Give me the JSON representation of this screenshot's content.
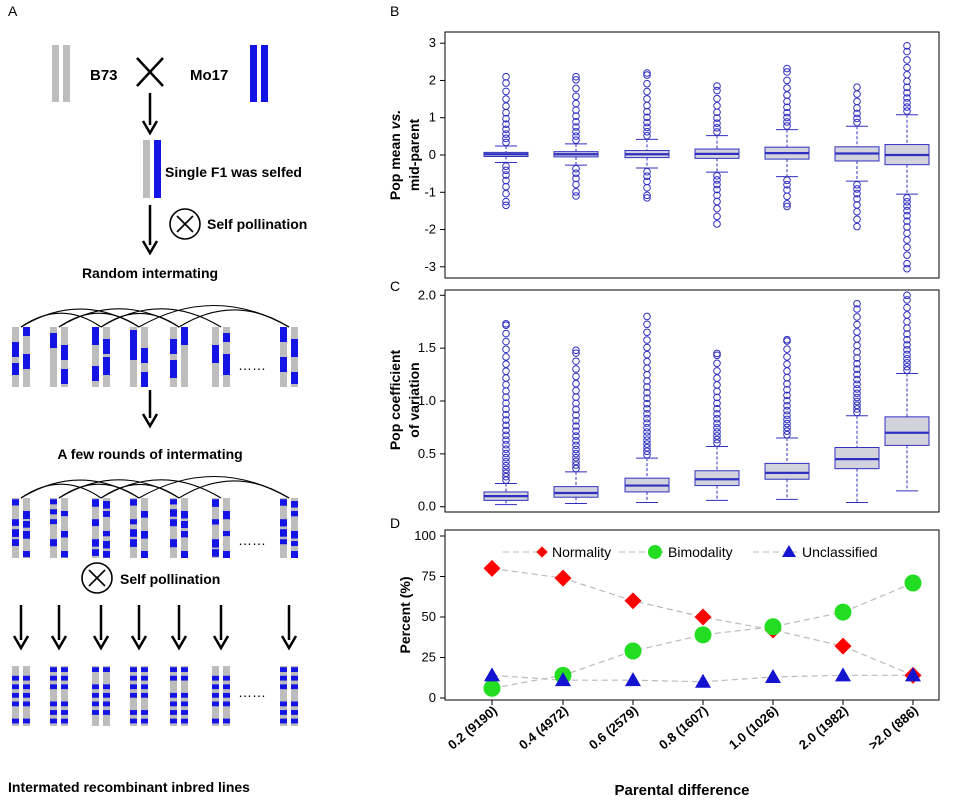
{
  "colors": {
    "grey": "#bdbdbd",
    "blue": "#1414e6",
    "box_fill": "#d3d3dd",
    "box_edge": "#3030c0",
    "normal": "#ff0000",
    "bimodal": "#22dd22",
    "unclass": "#1414d0",
    "line": "#bbbbbb"
  },
  "panel_a": {
    "label": "A",
    "parent1": "B73",
    "parent2": "Mo17",
    "f1_text": "Single F1 was selfed",
    "self1": "Self pollination",
    "random": "Random intermating",
    "few": "A few rounds of intermating",
    "self2": "Self pollination",
    "dots": "……",
    "final": "Intermated recombinant inbred lines"
  },
  "panel_b": {
    "label": "B",
    "ylabel_line1_a": "Pop mean ",
    "ylabel_line1_b": "vs.",
    "ylabel_line2": "mid-parent",
    "yticks": [
      "-3",
      "-2",
      "-1",
      "0",
      "1",
      "2",
      "3"
    ]
  },
  "panel_c": {
    "label": "C",
    "ylabel_line1": "Pop coefficient",
    "ylabel_line2": "of  variation",
    "yticks": [
      "0.0",
      "0.5",
      "1.0",
      "1.5",
      "2.0"
    ]
  },
  "panel_d": {
    "label": "D",
    "ylabel": "Percent (%)",
    "yticks": [
      "0",
      "25",
      "50",
      "75",
      "100"
    ],
    "xlabel": "Parental difference",
    "legend": [
      "Normality",
      "Bimodality",
      "Unclassified"
    ]
  },
  "chart_data": [
    {
      "type": "box",
      "title": "",
      "ylabel": "Pop mean vs. mid-parent",
      "ylim": [
        -3.3,
        3.3
      ],
      "categories": [
        "0.2 (9190)",
        "0.4 (4972)",
        "0.6 (2579)",
        "0.8 (1607)",
        "1.0 (1026)",
        "2.0 (1982)",
        ">2.0 (886)"
      ],
      "boxes": [
        {
          "q1": -0.04,
          "median": 0.02,
          "q3": 0.07,
          "wlo": -0.2,
          "whi": 0.24,
          "min": -1.35,
          "max": 2.1
        },
        {
          "q1": -0.05,
          "median": 0.02,
          "q3": 0.09,
          "wlo": -0.27,
          "whi": 0.3,
          "min": -1.1,
          "max": 2.1
        },
        {
          "q1": -0.07,
          "median": 0.02,
          "q3": 0.12,
          "wlo": -0.35,
          "whi": 0.42,
          "min": -1.15,
          "max": 2.2
        },
        {
          "q1": -0.09,
          "median": 0.03,
          "q3": 0.16,
          "wlo": -0.46,
          "whi": 0.52,
          "min": -1.85,
          "max": 1.85
        },
        {
          "q1": -0.11,
          "median": 0.05,
          "q3": 0.21,
          "wlo": -0.58,
          "whi": 0.68,
          "min": -1.38,
          "max": 2.32
        },
        {
          "q1": -0.16,
          "median": 0.04,
          "q3": 0.22,
          "wlo": -0.7,
          "whi": 0.77,
          "min": -1.92,
          "max": 1.82
        },
        {
          "q1": -0.26,
          "median": 0.0,
          "q3": 0.28,
          "wlo": -1.05,
          "whi": 1.08,
          "min": -3.05,
          "max": 2.93
        }
      ]
    },
    {
      "type": "box",
      "title": "",
      "ylabel": "Pop coefficient of variation",
      "ylim": [
        -0.05,
        2.05
      ],
      "categories": [
        "0.2 (9190)",
        "0.4 (4972)",
        "0.6 (2579)",
        "0.8 (1607)",
        "1.0 (1026)",
        "2.0 (1982)",
        ">2.0 (886)"
      ],
      "boxes": [
        {
          "q1": 0.06,
          "median": 0.1,
          "q3": 0.14,
          "wlo": 0.02,
          "whi": 0.22,
          "min": 0.02,
          "max": 1.73
        },
        {
          "q1": 0.09,
          "median": 0.13,
          "q3": 0.19,
          "wlo": 0.03,
          "whi": 0.33,
          "min": 0.03,
          "max": 1.48
        },
        {
          "q1": 0.14,
          "median": 0.2,
          "q3": 0.27,
          "wlo": 0.04,
          "whi": 0.46,
          "min": 0.04,
          "max": 1.8
        },
        {
          "q1": 0.2,
          "median": 0.26,
          "q3": 0.34,
          "wlo": 0.06,
          "whi": 0.57,
          "min": 0.06,
          "max": 1.45
        },
        {
          "q1": 0.26,
          "median": 0.32,
          "q3": 0.41,
          "wlo": 0.07,
          "whi": 0.65,
          "min": 0.07,
          "max": 1.58
        },
        {
          "q1": 0.36,
          "median": 0.45,
          "q3": 0.56,
          "wlo": 0.04,
          "whi": 0.86,
          "min": 0.04,
          "max": 1.92
        },
        {
          "q1": 0.58,
          "median": 0.7,
          "q3": 0.85,
          "wlo": 0.15,
          "whi": 1.26,
          "min": 0.15,
          "max": 2.0
        }
      ]
    },
    {
      "type": "line",
      "title": "",
      "xlabel": "Parental difference",
      "ylabel": "Percent (%)",
      "ylim": [
        0,
        100
      ],
      "categories": [
        "0.2 (9190)",
        "0.4 (4972)",
        "0.6 (2579)",
        "0.8 (1607)",
        "1.0 (1026)",
        "2.0 (1982)",
        ">2.0 (886)"
      ],
      "series": [
        {
          "name": "Normality",
          "values": [
            80,
            74,
            60,
            50,
            42,
            32,
            14
          ]
        },
        {
          "name": "Bimodality",
          "values": [
            6,
            14,
            29,
            39,
            44,
            53,
            71
          ]
        },
        {
          "name": "Unclassified",
          "values": [
            14,
            11,
            11,
            10,
            13,
            14,
            14
          ]
        }
      ]
    }
  ]
}
